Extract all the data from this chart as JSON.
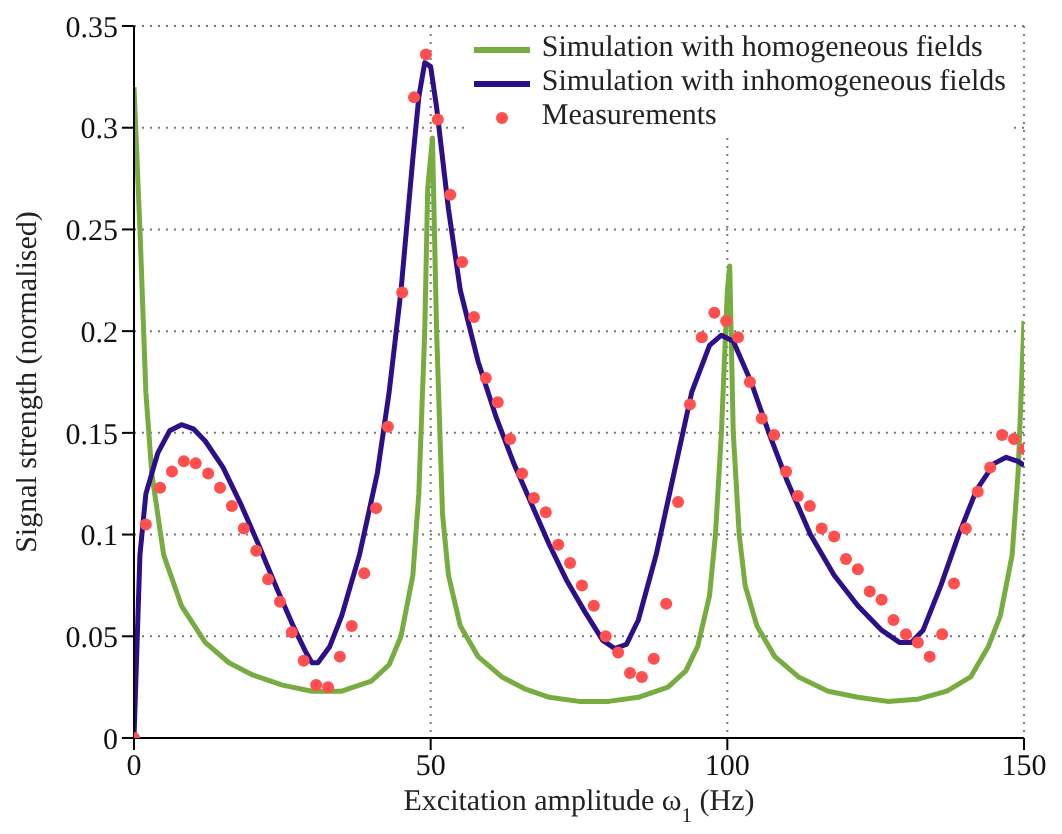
{
  "chart_data": {
    "type": "line",
    "xlabel": "Excitation amplitude ω$_{1}$ (Hz)",
    "ylabel": "Signal strength (normalised)",
    "xlim": [
      0,
      150
    ],
    "xticks": [
      0,
      50,
      100,
      150
    ],
    "ylim": [
      0,
      0.35
    ],
    "yticks": [
      0,
      0.05,
      0.1,
      0.15,
      0.2,
      0.25,
      0.3,
      0.35
    ],
    "grid": true,
    "legend": "top right",
    "line_style": "solid",
    "series": [
      {
        "name": "Simulation with homogeneous fields",
        "color": "#77ac41",
        "type": "line",
        "marker": "none",
        "x": [
          0,
          1,
          2,
          3,
          5,
          8,
          12,
          16,
          20,
          25,
          30,
          35,
          40,
          43,
          45,
          47,
          48,
          49,
          49.5,
          50.3,
          51,
          52,
          53,
          55,
          58,
          62,
          66,
          70,
          75,
          80,
          85,
          90,
          93,
          95,
          97,
          98,
          99,
          100,
          100.4,
          101,
          102,
          103,
          105,
          108,
          112,
          117,
          122,
          127,
          132,
          137,
          141,
          144,
          146,
          148,
          149,
          150
        ],
        "values": [
          0.32,
          0.25,
          0.17,
          0.13,
          0.09,
          0.065,
          0.047,
          0.037,
          0.031,
          0.026,
          0.023,
          0.023,
          0.028,
          0.036,
          0.05,
          0.08,
          0.12,
          0.2,
          0.27,
          0.295,
          0.2,
          0.11,
          0.08,
          0.055,
          0.04,
          0.03,
          0.024,
          0.02,
          0.018,
          0.018,
          0.02,
          0.025,
          0.033,
          0.045,
          0.07,
          0.1,
          0.15,
          0.22,
          0.232,
          0.15,
          0.1,
          0.075,
          0.055,
          0.04,
          0.03,
          0.023,
          0.02,
          0.018,
          0.019,
          0.023,
          0.03,
          0.045,
          0.06,
          0.09,
          0.13,
          0.205
        ]
      },
      {
        "name": "Simulation with inhomogeneous fields",
        "color": "#2e0f8a",
        "type": "line",
        "marker": "none",
        "x": [
          0,
          1,
          2,
          4,
          6,
          8,
          10,
          12,
          15,
          18,
          21,
          24,
          27,
          29,
          30,
          31,
          33,
          35,
          38,
          41,
          43,
          45,
          47,
          48,
          49,
          50,
          51,
          53,
          55,
          58,
          61,
          64,
          67,
          70,
          73,
          76,
          79,
          81,
          83,
          85,
          88,
          91,
          94,
          97,
          99,
          101,
          104,
          107,
          110,
          114,
          118,
          122,
          126,
          129,
          131,
          133,
          136,
          139,
          142,
          145,
          147,
          149,
          150
        ],
        "values": [
          0,
          0.09,
          0.12,
          0.14,
          0.151,
          0.154,
          0.152,
          0.146,
          0.133,
          0.115,
          0.095,
          0.074,
          0.054,
          0.042,
          0.037,
          0.037,
          0.045,
          0.06,
          0.09,
          0.13,
          0.17,
          0.22,
          0.285,
          0.315,
          0.332,
          0.33,
          0.31,
          0.26,
          0.22,
          0.185,
          0.158,
          0.135,
          0.115,
          0.095,
          0.077,
          0.062,
          0.048,
          0.044,
          0.046,
          0.058,
          0.09,
          0.13,
          0.17,
          0.193,
          0.198,
          0.195,
          0.175,
          0.15,
          0.127,
          0.1,
          0.08,
          0.065,
          0.053,
          0.047,
          0.047,
          0.053,
          0.075,
          0.1,
          0.122,
          0.135,
          0.138,
          0.136,
          0.134
        ]
      },
      {
        "name": "Measurements",
        "color": "#ff4f4f",
        "type": "scatter",
        "marker": "circle",
        "x": [
          0,
          2,
          4.4,
          6.4,
          8.4,
          10.4,
          12.5,
          14.5,
          16.5,
          18.5,
          20.6,
          22.6,
          24.6,
          26.6,
          28.6,
          30.7,
          32.7,
          34.7,
          36.7,
          38.8,
          40.8,
          42.8,
          45.2,
          47.2,
          49.2,
          51.2,
          53.3,
          55.3,
          57.3,
          59.3,
          61.3,
          63.4,
          65.4,
          67.4,
          69.4,
          71.5,
          73.5,
          75.5,
          77.5,
          79.5,
          81.6,
          83.6,
          85.6,
          87.6,
          89.7,
          91.7,
          93.7,
          95.7,
          97.8,
          99.8,
          101.8,
          103.8,
          105.8,
          107.9,
          109.9,
          111.9,
          113.9,
          115.9,
          118,
          120,
          122,
          124,
          126,
          128,
          130.1,
          132.1,
          134.1,
          136.2,
          138.2,
          140.2,
          142.2,
          144.3,
          146.3,
          148.3,
          150
        ],
        "values": [
          0,
          0.105,
          0.123,
          0.131,
          0.136,
          0.135,
          0.13,
          0.123,
          0.114,
          0.103,
          0.092,
          0.078,
          0.067,
          0.052,
          0.038,
          0.026,
          0.025,
          0.04,
          0.055,
          0.081,
          0.113,
          0.153,
          0.219,
          0.315,
          0.336,
          0.304,
          0.267,
          0.234,
          0.207,
          0.177,
          0.165,
          0.147,
          0.13,
          0.118,
          0.111,
          0.095,
          0.086,
          0.075,
          0.065,
          0.05,
          0.042,
          0.032,
          0.03,
          0.039,
          0.066,
          0.116,
          0.164,
          0.197,
          0.209,
          0.205,
          0.197,
          0.175,
          0.157,
          0.149,
          0.131,
          0.119,
          0.114,
          0.103,
          0.099,
          0.088,
          0.083,
          0.072,
          0.068,
          0.058,
          0.051,
          0.047,
          0.04,
          0.051,
          0.076,
          0.103,
          0.121,
          0.133,
          0.149,
          0.147,
          0.142
        ]
      }
    ]
  }
}
